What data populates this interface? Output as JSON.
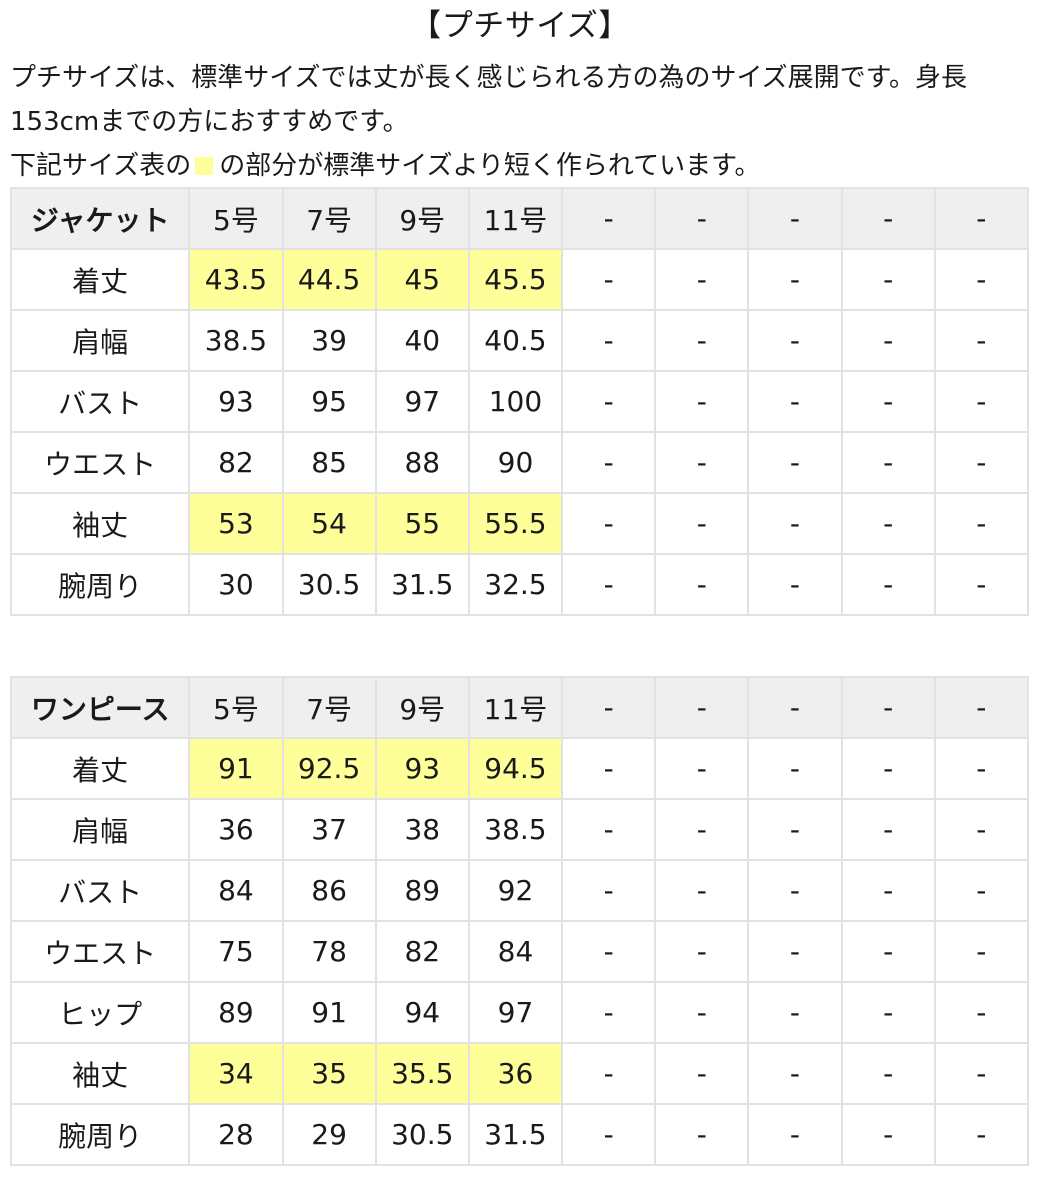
{
  "title": "【プチサイズ】",
  "intro": {
    "line1": "プチサイズは、標準サイズでは丈が長く感じられる方の為のサイズ展開です。身長153cmまでの方におすすめです。",
    "line2_before": "下記サイズ表の",
    "line2_after": "の部分が標準サイズより短く作られています。",
    "highlight_color": "#ffff99"
  },
  "tables": [
    {
      "title": "ジャケット",
      "sizes": [
        "5号",
        "7号",
        "9号",
        "11号",
        "-",
        "-",
        "-",
        "-",
        "-"
      ],
      "rows": [
        {
          "label": "着丈",
          "highlight": true,
          "values": [
            "43.5",
            "44.5",
            "45",
            "45.5",
            "-",
            "-",
            "-",
            "-",
            "-"
          ]
        },
        {
          "label": "肩幅",
          "highlight": false,
          "values": [
            "38.5",
            "39",
            "40",
            "40.5",
            "-",
            "-",
            "-",
            "-",
            "-"
          ]
        },
        {
          "label": "バスト",
          "highlight": false,
          "values": [
            "93",
            "95",
            "97",
            "100",
            "-",
            "-",
            "-",
            "-",
            "-"
          ]
        },
        {
          "label": "ウエスト",
          "highlight": false,
          "values": [
            "82",
            "85",
            "88",
            "90",
            "-",
            "-",
            "-",
            "-",
            "-"
          ]
        },
        {
          "label": "袖丈",
          "highlight": true,
          "values": [
            "53",
            "54",
            "55",
            "55.5",
            "-",
            "-",
            "-",
            "-",
            "-"
          ]
        },
        {
          "label": "腕周り",
          "highlight": false,
          "values": [
            "30",
            "30.5",
            "31.5",
            "32.5",
            "-",
            "-",
            "-",
            "-",
            "-"
          ]
        }
      ]
    },
    {
      "title": "ワンピース",
      "sizes": [
        "5号",
        "7号",
        "9号",
        "11号",
        "-",
        "-",
        "-",
        "-",
        "-"
      ],
      "rows": [
        {
          "label": "着丈",
          "highlight": true,
          "values": [
            "91",
            "92.5",
            "93",
            "94.5",
            "-",
            "-",
            "-",
            "-",
            "-"
          ]
        },
        {
          "label": "肩幅",
          "highlight": false,
          "values": [
            "36",
            "37",
            "38",
            "38.5",
            "-",
            "-",
            "-",
            "-",
            "-"
          ]
        },
        {
          "label": "バスト",
          "highlight": false,
          "values": [
            "84",
            "86",
            "89",
            "92",
            "-",
            "-",
            "-",
            "-",
            "-"
          ]
        },
        {
          "label": "ウエスト",
          "highlight": false,
          "values": [
            "75",
            "78",
            "82",
            "84",
            "-",
            "-",
            "-",
            "-",
            "-"
          ]
        },
        {
          "label": "ヒップ",
          "highlight": false,
          "values": [
            "89",
            "91",
            "94",
            "97",
            "-",
            "-",
            "-",
            "-",
            "-"
          ]
        },
        {
          "label": "袖丈",
          "highlight": true,
          "values": [
            "34",
            "35",
            "35.5",
            "36",
            "-",
            "-",
            "-",
            "-",
            "-"
          ]
        },
        {
          "label": "腕周り",
          "highlight": false,
          "values": [
            "28",
            "29",
            "30.5",
            "31.5",
            "-",
            "-",
            "-",
            "-",
            "-"
          ]
        }
      ]
    }
  ]
}
